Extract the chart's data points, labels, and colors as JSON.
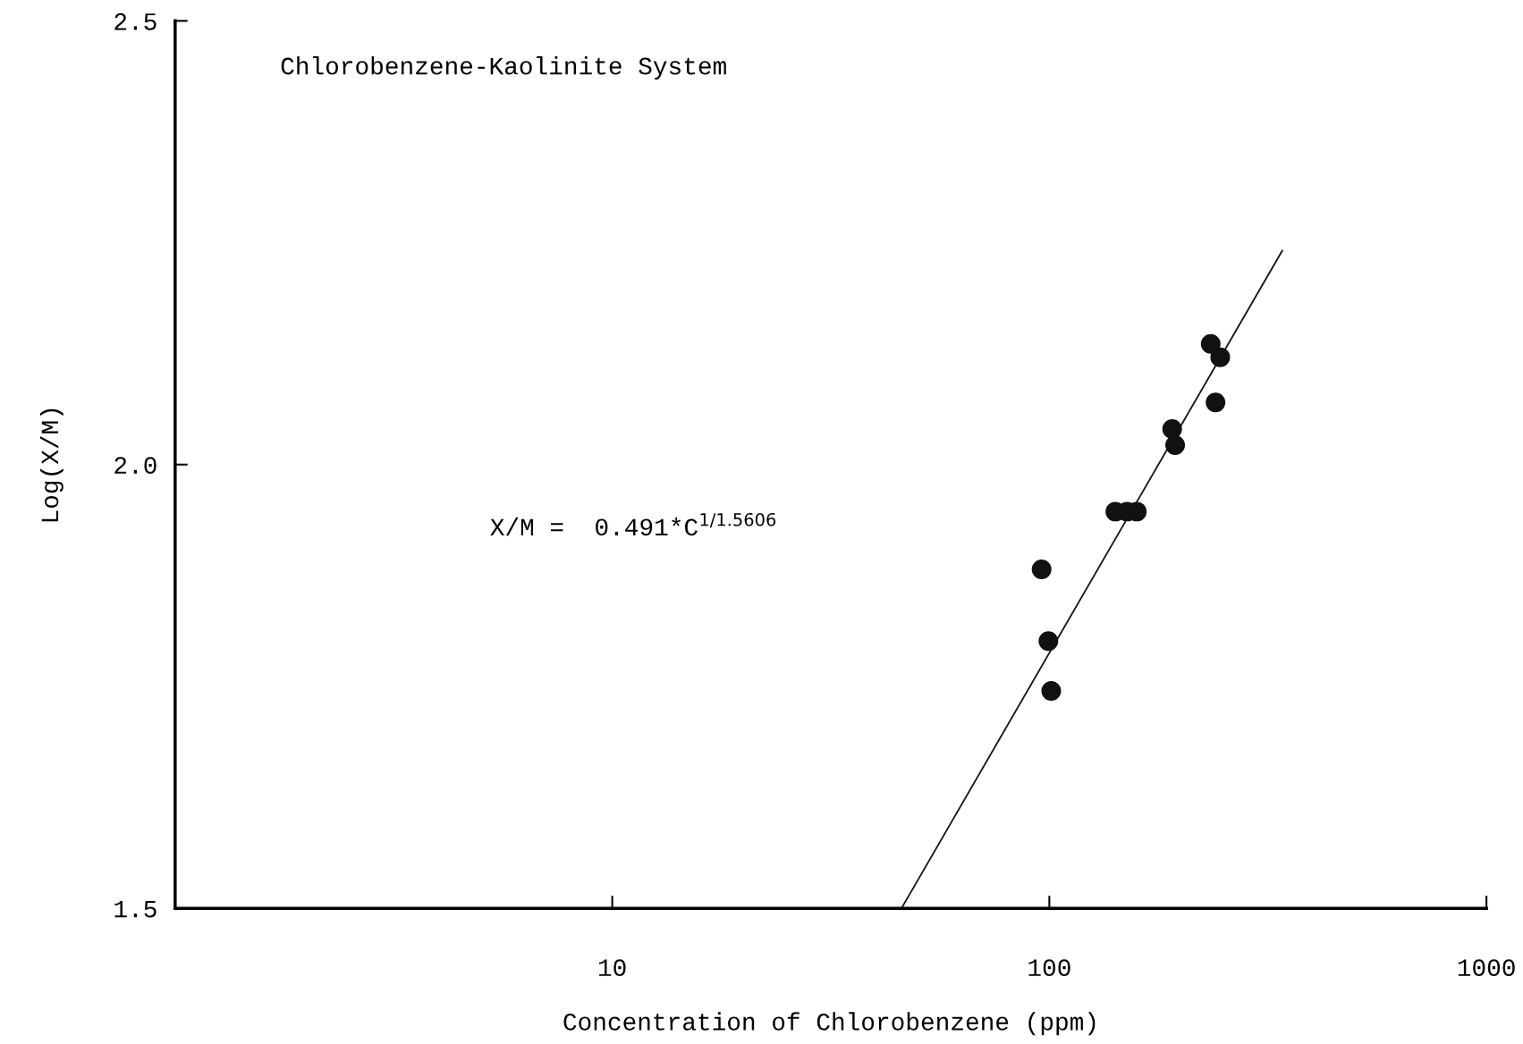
{
  "chart_data": {
    "type": "scatter",
    "title": "Chlorobenzene-Kaolinite System",
    "xlabel": "Concentration of Chlorobenzene (ppm)",
    "ylabel": "Log(X/M)",
    "log": "x",
    "xlim": [
      1,
      1000
    ],
    "xticks": [
      10,
      100,
      1000
    ],
    "ylim": [
      1.5,
      2.5
    ],
    "yticks": [
      {
        "value": 1.5,
        "label": "1.5"
      },
      {
        "value": 2.0,
        "label": "2.0"
      },
      {
        "value": 2.5,
        "label": "2.5"
      }
    ],
    "grid": false,
    "legend": false,
    "annotations": [
      "X/M =  0.491*C$^{1/1.5606}$"
    ],
    "series": [
      {
        "marker": "circle",
        "color": "#111111",
        "x": [
          96,
          99.5,
          101,
          141.6,
          150.6,
          158.5,
          191,
          194,
          234,
          246,
          240
        ],
        "values": [
          1.882,
          1.801,
          1.745,
          1.947,
          1.947,
          1.947,
          2.04,
          2.022,
          2.136,
          2.121,
          2.07
        ]
      },
      {
        "type": "line",
        "marker": "none",
        "color": "#111111",
        "x": [
          45.9,
          341
        ],
        "values": [
          1.5,
          2.241
        ]
      }
    ]
  }
}
